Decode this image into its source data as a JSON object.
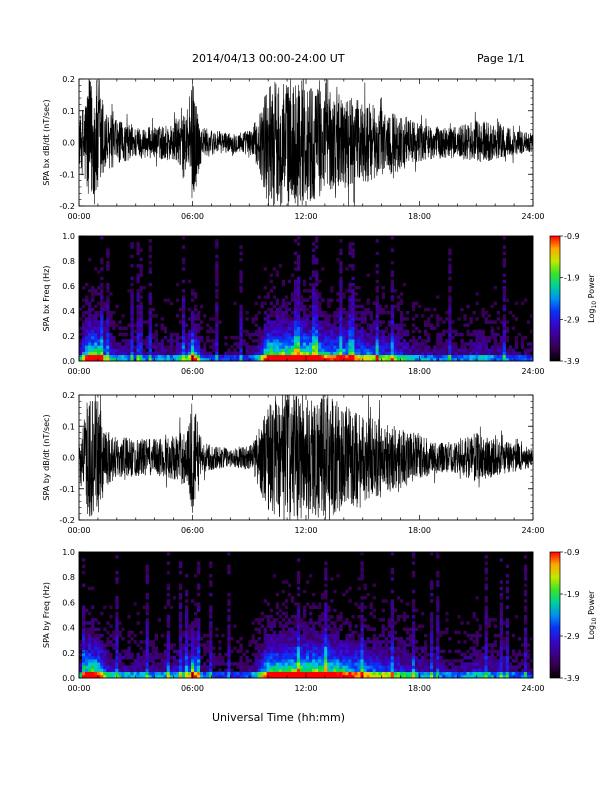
{
  "header": {
    "title": "2014/04/13  00:00-24:00 UT",
    "page": "Page 1/1"
  },
  "xaxis": {
    "label": "Universal Time (hh:mm)",
    "ticks": [
      "00:00",
      "06:00",
      "12:00",
      "18:00",
      "24:00"
    ]
  },
  "chart_data": [
    {
      "type": "line",
      "ylabel": "SPA bx dB/dt (nT/sec)",
      "xlim": [
        0,
        24
      ],
      "ylim": [
        -0.2,
        0.2
      ],
      "yticks": [
        "-0.2",
        "-0.1",
        "0.0",
        "0.1",
        "0.2"
      ],
      "x_units": "hours UT",
      "envelope": {
        "hours": [
          0,
          0.5,
          1,
          1.5,
          2,
          3,
          4,
          5,
          5.8,
          6,
          6.5,
          7,
          8,
          9,
          9.5,
          10,
          10.5,
          11,
          12,
          13,
          14,
          15,
          16,
          17,
          18,
          19,
          20,
          21,
          22,
          23,
          24
        ],
        "amplitude": [
          0.06,
          0.2,
          0.2,
          0.09,
          0.07,
          0.05,
          0.05,
          0.06,
          0.1,
          0.2,
          0.05,
          0.04,
          0.03,
          0.04,
          0.08,
          0.2,
          0.2,
          0.2,
          0.2,
          0.16,
          0.15,
          0.13,
          0.11,
          0.09,
          0.06,
          0.05,
          0.05,
          0.07,
          0.06,
          0.04,
          0.03
        ]
      }
    },
    {
      "type": "heatmap",
      "ylabel": "SPA bx Freq (Hz)",
      "xlim": [
        0,
        24
      ],
      "ylim": [
        0,
        1.0
      ],
      "yticks": [
        "0.0",
        "0.2",
        "0.4",
        "0.6",
        "0.8",
        "1.0"
      ],
      "colorbar": {
        "label": "Log10 Power",
        "range": [
          -3.9,
          -0.9
        ],
        "ticks": [
          "-0.9",
          "-1.9",
          "-2.9",
          "-3.9"
        ]
      }
    },
    {
      "type": "line",
      "ylabel": "SPA by dB/dt (nT/sec)",
      "xlim": [
        0,
        24
      ],
      "ylim": [
        -0.2,
        0.2
      ],
      "yticks": [
        "-0.2",
        "-0.1",
        "0.0",
        "0.1",
        "0.2"
      ],
      "x_units": "hours UT",
      "envelope": {
        "hours": [
          0,
          0.5,
          1,
          1.5,
          2,
          3,
          4,
          5,
          5.8,
          6,
          6.5,
          7,
          8,
          9,
          9.5,
          10,
          10.5,
          11,
          12,
          13,
          14,
          15,
          16,
          17,
          18,
          19,
          20,
          21,
          22,
          23,
          24
        ],
        "amplitude": [
          0.05,
          0.2,
          0.18,
          0.09,
          0.07,
          0.06,
          0.06,
          0.07,
          0.1,
          0.2,
          0.05,
          0.04,
          0.03,
          0.04,
          0.09,
          0.18,
          0.2,
          0.2,
          0.2,
          0.2,
          0.17,
          0.14,
          0.12,
          0.1,
          0.07,
          0.05,
          0.05,
          0.08,
          0.06,
          0.05,
          0.03
        ]
      }
    },
    {
      "type": "heatmap",
      "ylabel": "SPA by Freq (Hz)",
      "xlim": [
        0,
        24
      ],
      "ylim": [
        0,
        1.0
      ],
      "yticks": [
        "0.0",
        "0.2",
        "0.4",
        "0.6",
        "0.8",
        "1.0"
      ],
      "colorbar": {
        "label": "Log10 Power",
        "range": [
          -3.9,
          -0.9
        ],
        "ticks": [
          "-0.9",
          "-1.9",
          "-2.9",
          "-3.9"
        ]
      }
    }
  ],
  "colors": {
    "background": "#ffffff",
    "trace": "#000000",
    "spectrogram_bg": "#000000"
  }
}
